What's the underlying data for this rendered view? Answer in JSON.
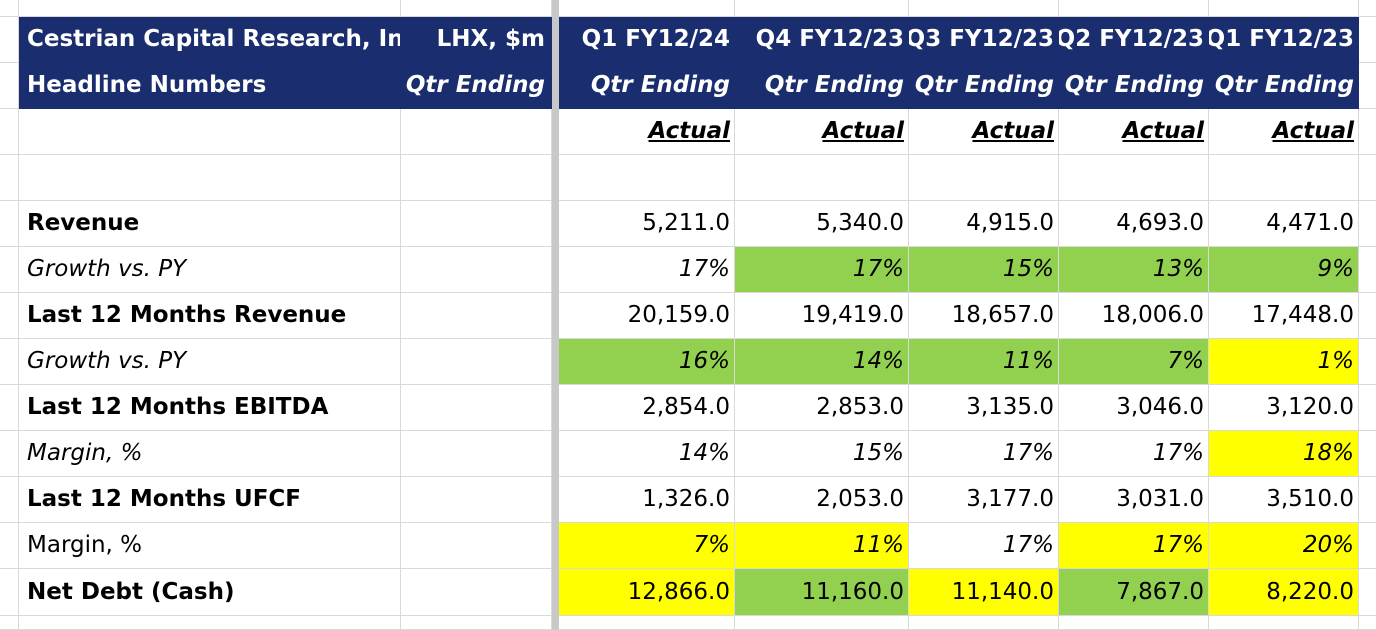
{
  "header": {
    "company": "Cestrian Capital Research, Inc",
    "subtitle": "Headline Numbers",
    "ticker": "LHX, $m",
    "qtr_ending": "Qtr Ending",
    "periods": [
      "Q1 FY12/24",
      "Q4 FY12/23",
      "Q3 FY12/23",
      "Q2 FY12/23",
      "Q1 FY12/23"
    ],
    "actual": "Actual"
  },
  "colors": {
    "header_bg": "#1a2d6e",
    "green": "#92d050",
    "yellow": "#ffff00",
    "gridline": "#d9d9d9"
  },
  "rows": [
    {
      "label": "Revenue",
      "style": "bold",
      "values": [
        "5,211.0",
        "5,340.0",
        "4,915.0",
        "4,693.0",
        "4,471.0"
      ],
      "fills": [
        "",
        "",
        "",
        "",
        ""
      ]
    },
    {
      "label": "Growth vs. PY",
      "style": "italic",
      "values": [
        "17%",
        "17%",
        "15%",
        "13%",
        "9%"
      ],
      "fills": [
        "",
        "green",
        "green",
        "green",
        "green"
      ]
    },
    {
      "label": "Last 12 Months Revenue",
      "style": "bold",
      "values": [
        "20,159.0",
        "19,419.0",
        "18,657.0",
        "18,006.0",
        "17,448.0"
      ],
      "fills": [
        "",
        "",
        "",
        "",
        ""
      ]
    },
    {
      "label": "Growth vs. PY",
      "style": "italic",
      "values": [
        "16%",
        "14%",
        "11%",
        "7%",
        "1%"
      ],
      "fills": [
        "green",
        "green",
        "green",
        "green",
        "yellow"
      ]
    },
    {
      "label": "Last 12 Months EBITDA",
      "style": "bold",
      "values": [
        "2,854.0",
        "2,853.0",
        "3,135.0",
        "3,046.0",
        "3,120.0"
      ],
      "fills": [
        "",
        "",
        "",
        "",
        ""
      ]
    },
    {
      "label": "Margin, %",
      "style": "italic",
      "values": [
        "14%",
        "15%",
        "17%",
        "17%",
        "18%"
      ],
      "fills": [
        "",
        "",
        "",
        "",
        "yellow"
      ]
    },
    {
      "label": "Last 12 Months UFCF",
      "style": "bold",
      "values": [
        "1,326.0",
        "2,053.0",
        "3,177.0",
        "3,031.0",
        "3,510.0"
      ],
      "fills": [
        "",
        "",
        "",
        "",
        ""
      ]
    },
    {
      "label": "Margin, %",
      "style": "plain-label-italic-values",
      "values": [
        "7%",
        "11%",
        "17%",
        "17%",
        "20%"
      ],
      "fills": [
        "yellow",
        "yellow",
        "",
        "yellow",
        "yellow"
      ]
    },
    {
      "label": "Net Debt (Cash)",
      "style": "bold",
      "values": [
        "12,866.0",
        "11,160.0",
        "11,140.0",
        "7,867.0",
        "8,220.0"
      ],
      "fills": [
        "yellow",
        "green",
        "yellow",
        "green",
        "yellow"
      ]
    }
  ]
}
